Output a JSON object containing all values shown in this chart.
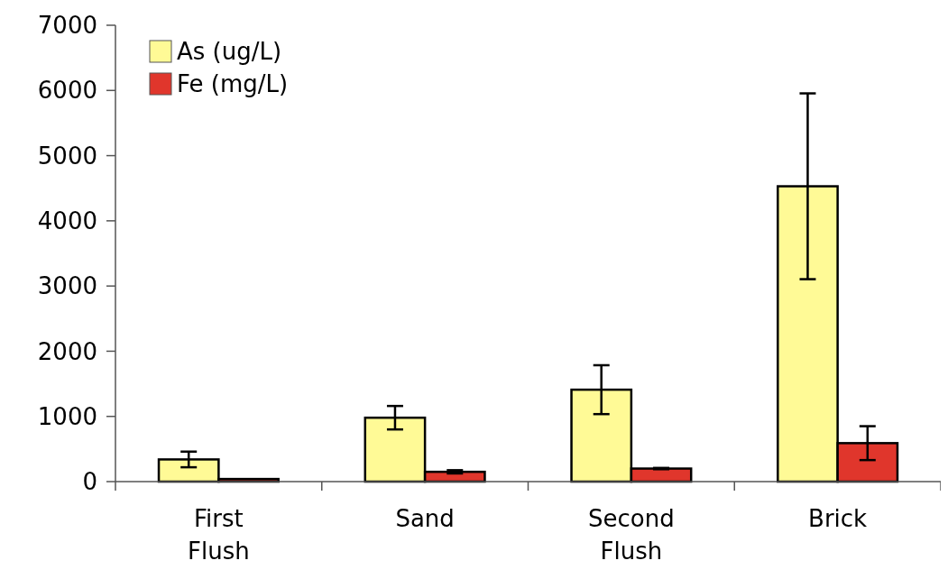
{
  "chart_data": {
    "type": "bar",
    "categories": [
      "First Flush",
      "Sand",
      "Second Flush",
      "Brick"
    ],
    "series": [
      {
        "name": "As (ug/L)",
        "color": "#fffa96",
        "values": [
          340,
          980,
          1410,
          4530
        ],
        "errors": [
          120,
          180,
          375,
          1425
        ]
      },
      {
        "name": "Fe (mg/L)",
        "color": "#e0362c",
        "values": [
          40,
          150,
          200,
          590
        ],
        "errors": [
          null,
          25,
          10,
          260
        ]
      }
    ],
    "ylim": [
      0,
      7000
    ],
    "yticks": [
      0,
      1000,
      2000,
      3000,
      4000,
      5000,
      6000,
      7000
    ],
    "grid": false,
    "legend": "top left"
  }
}
